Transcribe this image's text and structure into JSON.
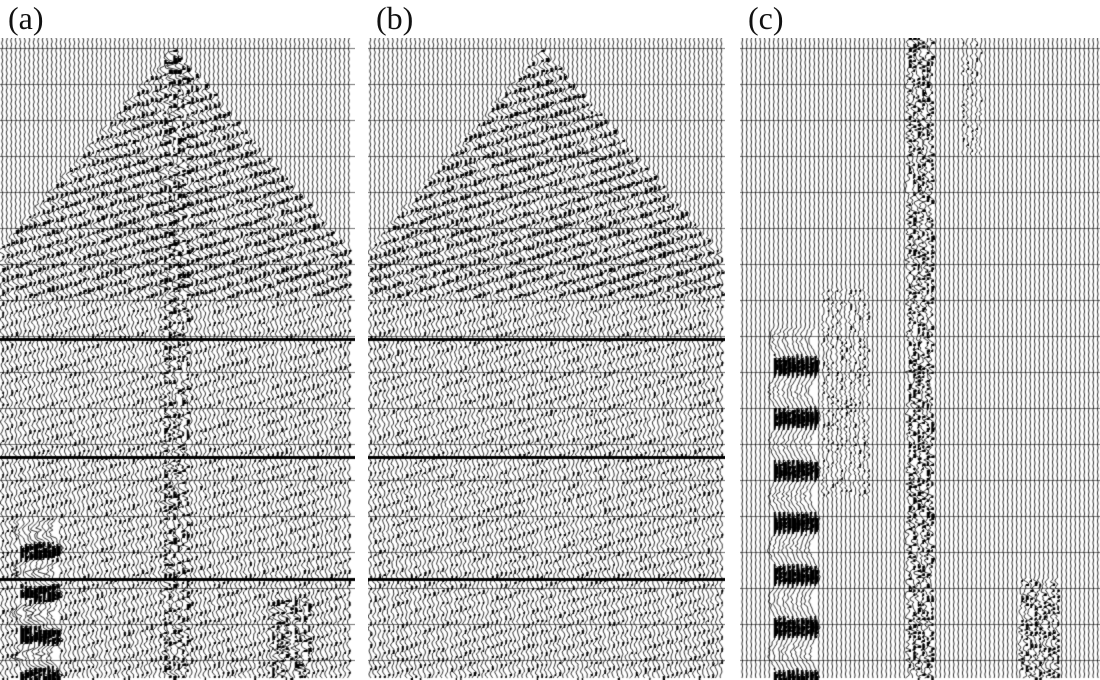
{
  "panels": [
    {
      "id": "a",
      "label": "(a)",
      "kind": "raw-with-noise"
    },
    {
      "id": "b",
      "label": "(b)",
      "kind": "denoised"
    },
    {
      "id": "c",
      "label": "(c)",
      "kind": "removed-noise"
    }
  ],
  "colors": {
    "trace": "#000000",
    "background": "#ffffff"
  }
}
